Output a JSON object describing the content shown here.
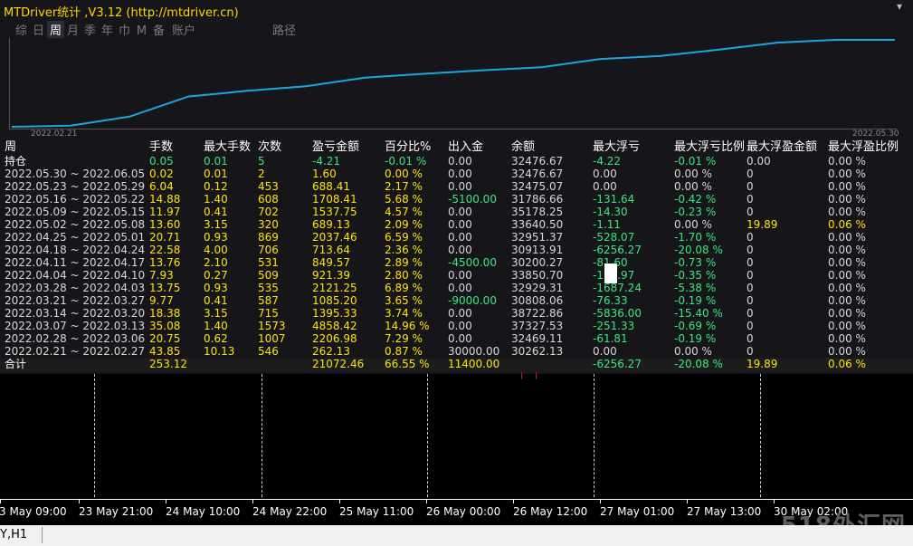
{
  "title": "MTDriver统计 ,V3.12 (http://mtdriver.cn)",
  "toolbar": {
    "items": [
      "综",
      "日",
      "周",
      "月",
      "季",
      "年",
      "巾",
      "M",
      "备",
      "账户"
    ],
    "route": "路径"
  },
  "chart": {
    "start_date": "2022.02.21",
    "end_date": "2022.05.30",
    "line_color": "#19a7e0"
  },
  "table": {
    "headers": [
      "周",
      "手数",
      "最大手数",
      "次数",
      "盈亏金额",
      "百分比%",
      "出入金",
      "余额",
      "最大浮亏",
      "最大浮亏比例",
      "最大浮盈金额",
      "最大浮盈比例"
    ],
    "position_row": {
      "label": "持仓",
      "lots": "0.05",
      "max_lots": "0.01",
      "count": "5",
      "pnl": "-4.21",
      "pct": "-0.01 %",
      "flow": "0.00",
      "balance": "32476.67",
      "max_float_loss": "-4.22",
      "max_float_loss_pct": "-0.01 %",
      "max_float_profit": "0.00",
      "max_float_profit_pct": "0.00 %"
    },
    "rows": [
      {
        "label": "2022.05.30 ~ 2022.06.05",
        "lots": "0.02",
        "max_lots": "0.01",
        "count": "2",
        "pnl": "1.60",
        "pct": "0.00 %",
        "flow": "0.00",
        "balance": "32476.67",
        "max_float_loss": "0.00",
        "max_float_loss_pct": "0.00 %",
        "max_float_profit": "0",
        "max_float_profit_pct": "0.00 %"
      },
      {
        "label": "2022.05.23 ~ 2022.05.29",
        "lots": "6.04",
        "max_lots": "0.12",
        "count": "453",
        "pnl": "688.41",
        "pct": "2.17 %",
        "flow": "0.00",
        "balance": "32475.07",
        "max_float_loss": "0.00",
        "max_float_loss_pct": "0.00 %",
        "max_float_profit": "0",
        "max_float_profit_pct": "0.00 %"
      },
      {
        "label": "2022.05.16 ~ 2022.05.22",
        "lots": "14.88",
        "max_lots": "1.40",
        "count": "608",
        "pnl": "1708.41",
        "pct": "5.68 %",
        "flow": "-5100.00",
        "balance": "31786.66",
        "max_float_loss": "-131.64",
        "max_float_loss_pct": "-0.42 %",
        "max_float_profit": "0",
        "max_float_profit_pct": "0.00 %"
      },
      {
        "label": "2022.05.09 ~ 2022.05.15",
        "lots": "11.97",
        "max_lots": "0.41",
        "count": "702",
        "pnl": "1537.75",
        "pct": "4.57 %",
        "flow": "0.00",
        "balance": "35178.25",
        "max_float_loss": "-14.30",
        "max_float_loss_pct": "-0.23 %",
        "max_float_profit": "0",
        "max_float_profit_pct": "0.00 %"
      },
      {
        "label": "2022.05.02 ~ 2022.05.08",
        "lots": "13.60",
        "max_lots": "3.15",
        "count": "320",
        "pnl": "689.13",
        "pct": "2.09 %",
        "flow": "0.00",
        "balance": "33640.50",
        "max_float_loss": "-1.11",
        "max_float_loss_pct": "0.00 %",
        "max_float_profit": "19.89",
        "max_float_profit_pct": "0.06 %"
      },
      {
        "label": "2022.04.25 ~ 2022.05.01",
        "lots": "20.71",
        "max_lots": "0.93",
        "count": "869",
        "pnl": "2037.46",
        "pct": "6.59 %",
        "flow": "0.00",
        "balance": "32951.37",
        "max_float_loss": "-528.07",
        "max_float_loss_pct": "-1.70 %",
        "max_float_profit": "0",
        "max_float_profit_pct": "0.00 %"
      },
      {
        "label": "2022.04.18 ~ 2022.04.24",
        "lots": "22.58",
        "max_lots": "4.00",
        "count": "706",
        "pnl": "713.64",
        "pct": "2.36 %",
        "flow": "0.00",
        "balance": "30913.91",
        "max_float_loss": "-6256.27",
        "max_float_loss_pct": "-20.08 %",
        "max_float_profit": "0",
        "max_float_profit_pct": "0.00 %"
      },
      {
        "label": "2022.04.11 ~ 2022.04.17",
        "lots": "13.76",
        "max_lots": "2.10",
        "count": "531",
        "pnl": "849.57",
        "pct": "2.89 %",
        "flow": "-4500.00",
        "balance": "30200.27",
        "max_float_loss": "-81.60",
        "max_float_loss_pct": "-0.73 %",
        "max_float_profit": "0",
        "max_float_profit_pct": "0.00 %"
      },
      {
        "label": "2022.04.04 ~ 2022.04.10",
        "lots": "7.93",
        "max_lots": "0.27",
        "count": "509",
        "pnl": "921.39",
        "pct": "2.80 %",
        "flow": "0.00",
        "balance": "33850.70",
        "max_float_loss": "-113.97",
        "max_float_loss_pct": "-0.35 %",
        "max_float_profit": "0",
        "max_float_profit_pct": "0.00 %"
      },
      {
        "label": "2022.03.28 ~ 2022.04.03",
        "lots": "13.75",
        "max_lots": "0.93",
        "count": "535",
        "pnl": "2121.25",
        "pct": "6.89 %",
        "flow": "0.00",
        "balance": "32929.31",
        "max_float_loss": "-1687.24",
        "max_float_loss_pct": "-5.38 %",
        "max_float_profit": "0",
        "max_float_profit_pct": "0.00 %"
      },
      {
        "label": "2022.03.21 ~ 2022.03.27",
        "lots": "9.77",
        "max_lots": "0.41",
        "count": "587",
        "pnl": "1085.20",
        "pct": "3.65 %",
        "flow": "-9000.00",
        "balance": "30808.06",
        "max_float_loss": "-76.33",
        "max_float_loss_pct": "-0.19 %",
        "max_float_profit": "0",
        "max_float_profit_pct": "0.00 %"
      },
      {
        "label": "2022.03.14 ~ 2022.03.20",
        "lots": "18.38",
        "max_lots": "3.15",
        "count": "715",
        "pnl": "1395.33",
        "pct": "3.74 %",
        "flow": "0.00",
        "balance": "38722.86",
        "max_float_loss": "-5836.00",
        "max_float_loss_pct": "-15.40 %",
        "max_float_profit": "0",
        "max_float_profit_pct": "0.00 %"
      },
      {
        "label": "2022.03.07 ~ 2022.03.13",
        "lots": "35.08",
        "max_lots": "1.40",
        "count": "1573",
        "pnl": "4858.42",
        "pct": "14.96 %",
        "flow": "0.00",
        "balance": "37327.53",
        "max_float_loss": "-251.33",
        "max_float_loss_pct": "-0.69 %",
        "max_float_profit": "0",
        "max_float_profit_pct": "0.00 %"
      },
      {
        "label": "2022.02.28 ~ 2022.03.06",
        "lots": "20.75",
        "max_lots": "0.62",
        "count": "1007",
        "pnl": "2206.98",
        "pct": "7.29 %",
        "flow": "0.00",
        "balance": "32469.11",
        "max_float_loss": "-61.81",
        "max_float_loss_pct": "-0.19 %",
        "max_float_profit": "0",
        "max_float_profit_pct": "0.00 %"
      },
      {
        "label": "2022.02.21 ~ 2022.02.27",
        "lots": "43.85",
        "max_lots": "10.13",
        "count": "546",
        "pnl": "262.13",
        "pct": "0.87 %",
        "flow": "30000.00",
        "balance": "30262.13",
        "max_float_loss": "0.00",
        "max_float_loss_pct": "0.00 %",
        "max_float_profit": "0",
        "max_float_profit_pct": "0.00 %"
      }
    ],
    "total": {
      "label": "合计",
      "lots": "253.12",
      "pnl": "21072.46",
      "pct": "66.55 %",
      "flow": "11400.00",
      "max_float_loss": "-6256.27",
      "max_float_loss_pct": "-20.08 %",
      "max_float_profit": "19.89",
      "max_float_profit_pct": "0.06 %"
    }
  },
  "time_axis": [
    "3 May 09:00",
    "23 May 21:00",
    "24 May 10:00",
    "24 May 22:00",
    "25 May 11:00",
    "26 May 00:00",
    "26 May 12:00",
    "27 May 01:00",
    "27 May 13:00",
    "30 May 02:00"
  ],
  "status": "Y,H1",
  "watermark": "518外汇网"
}
